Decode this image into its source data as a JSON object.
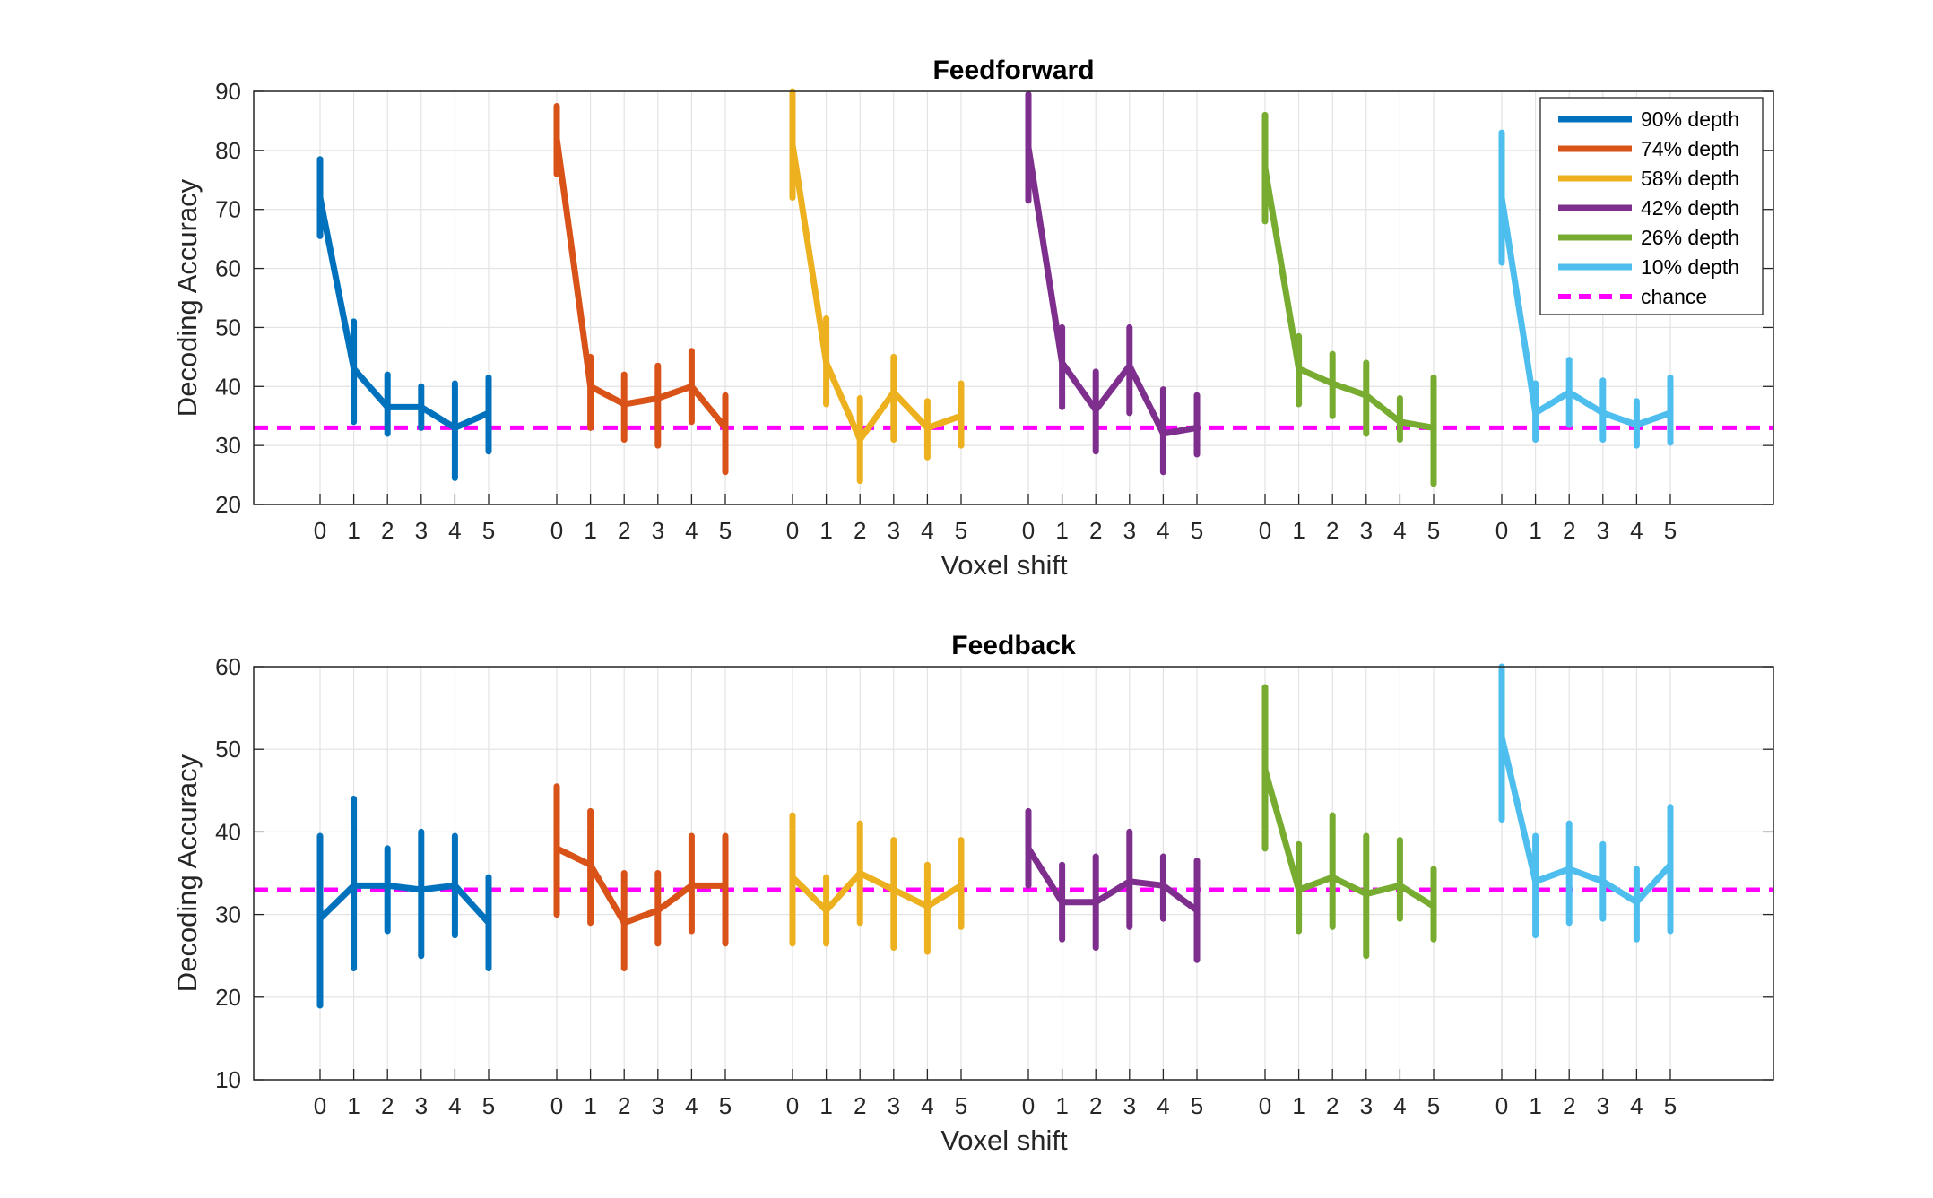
{
  "chart_data": [
    {
      "type": "line",
      "title": "Feedforward",
      "xlabel": "Voxel shift",
      "ylabel": "Decoding Accuracy",
      "ylim": [
        20,
        90
      ],
      "yticks": [
        20,
        30,
        40,
        50,
        60,
        70,
        80,
        90
      ],
      "x_tick_labels": [
        "0",
        "1",
        "2",
        "3",
        "4",
        "5"
      ],
      "chance": 33,
      "grid": true,
      "legend": {
        "placement": "top-right",
        "entries": [
          "90% depth",
          "74% depth",
          "58% depth",
          "42% depth",
          "26% depth",
          "10% depth",
          "chance"
        ]
      },
      "series": [
        {
          "name": "90% depth",
          "color": "#0072BD",
          "values": [
            72,
            43,
            36.5,
            36.5,
            33,
            35.5
          ],
          "err_low": [
            65.5,
            34,
            32,
            33,
            24.5,
            29
          ],
          "err_high": [
            78.5,
            51,
            42,
            40,
            40.5,
            41.5
          ]
        },
        {
          "name": "74% depth",
          "color": "#D95319",
          "values": [
            82,
            40,
            37,
            38,
            40,
            33
          ],
          "err_low": [
            76,
            33,
            31,
            30,
            34,
            25.5
          ],
          "err_high": [
            87.5,
            45,
            42,
            43.5,
            46,
            38.5
          ]
        },
        {
          "name": "58% depth",
          "color": "#EDB120",
          "values": [
            81,
            44,
            31,
            39,
            33,
            35
          ],
          "err_low": [
            72,
            37,
            24,
            31,
            28,
            30
          ],
          "err_high": [
            90,
            51.5,
            38,
            45,
            37.5,
            40.5
          ]
        },
        {
          "name": "42% depth",
          "color": "#7E2F8E",
          "values": [
            80.5,
            44,
            36,
            43.5,
            32,
            33
          ],
          "err_low": [
            71.5,
            36.5,
            29,
            35.5,
            25.5,
            28.5
          ],
          "err_high": [
            89.5,
            50,
            42.5,
            50,
            39.5,
            38.5
          ]
        },
        {
          "name": "26% depth",
          "color": "#77AC30",
          "values": [
            77,
            43,
            40.5,
            38.5,
            34,
            33
          ],
          "err_low": [
            68,
            37,
            35,
            32,
            31,
            23.5
          ],
          "err_high": [
            86,
            48.5,
            45.5,
            44,
            38,
            41.5
          ]
        },
        {
          "name": "10% depth",
          "color": "#4DBEEE",
          "values": [
            72,
            35.5,
            39,
            35.5,
            33.5,
            35.5
          ],
          "err_low": [
            61,
            31,
            33.5,
            31,
            30,
            30.5
          ],
          "err_high": [
            83,
            40.5,
            44.5,
            41,
            37.5,
            41.5
          ]
        }
      ]
    },
    {
      "type": "line",
      "title": "Feedback",
      "xlabel": "",
      "ylabel": "Decoding Accuracy",
      "ylim": [
        10,
        60
      ],
      "yticks": [
        10,
        20,
        30,
        40,
        50,
        60
      ],
      "x_tick_labels": [
        "0",
        "1",
        "2",
        "3",
        "4",
        "5"
      ],
      "chance": 33,
      "grid": true,
      "series": [
        {
          "name": "90% depth",
          "color": "#0072BD",
          "values": [
            29.5,
            33.5,
            33.5,
            33,
            33.5,
            29
          ],
          "err_low": [
            19,
            23.5,
            28,
            25,
            27.5,
            23.5
          ],
          "err_high": [
            39.5,
            44,
            38,
            40,
            39.5,
            34.5
          ]
        },
        {
          "name": "74% depth",
          "color": "#D95319",
          "values": [
            38,
            36,
            29,
            30.5,
            33.5,
            33.5
          ],
          "err_low": [
            30,
            29,
            23.5,
            26.5,
            28,
            26.5
          ],
          "err_high": [
            45.5,
            42.5,
            35,
            35,
            39.5,
            39.5
          ]
        },
        {
          "name": "58% depth",
          "color": "#EDB120",
          "values": [
            34.5,
            30.5,
            35,
            33,
            31,
            33.5
          ],
          "err_low": [
            26.5,
            26.5,
            29,
            26,
            25.5,
            28.5
          ],
          "err_high": [
            42,
            34.5,
            41,
            39,
            36,
            39
          ]
        },
        {
          "name": "42% depth",
          "color": "#7E2F8E",
          "values": [
            38,
            31.5,
            31.5,
            34,
            33.5,
            30.5
          ],
          "err_low": [
            33.5,
            27,
            26,
            28.5,
            29.5,
            24.5
          ],
          "err_high": [
            42.5,
            36,
            37,
            40,
            37,
            36.5
          ]
        },
        {
          "name": "26% depth",
          "color": "#77AC30",
          "values": [
            47.5,
            33,
            34.5,
            32.5,
            33.5,
            31
          ],
          "err_low": [
            38,
            28,
            28.5,
            25,
            29.5,
            27
          ],
          "err_high": [
            57.5,
            38.5,
            42,
            39.5,
            39,
            35.5
          ]
        },
        {
          "name": "10% depth",
          "color": "#4DBEEE",
          "values": [
            51.5,
            34,
            35.5,
            34,
            31.5,
            36
          ],
          "err_low": [
            41.5,
            27.5,
            29,
            29.5,
            27,
            28
          ],
          "err_high": [
            60,
            39.5,
            41,
            38.5,
            35.5,
            43
          ]
        }
      ]
    }
  ]
}
